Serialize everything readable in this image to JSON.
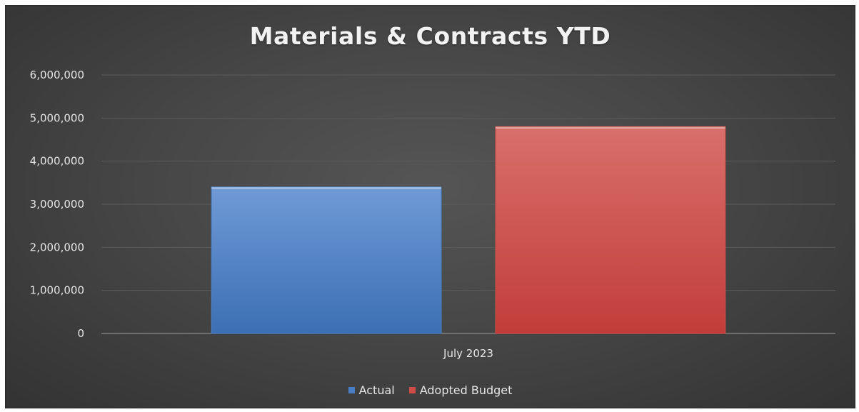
{
  "chart_data": {
    "type": "bar",
    "title": "Materials & Contracts YTD",
    "categories": [
      "July 2023"
    ],
    "series": [
      {
        "name": "Actual",
        "values": [
          3400000
        ],
        "color": "#4a7ec4"
      },
      {
        "name": "Adopted Budget",
        "values": [
          4800000
        ],
        "color": "#cf4b48"
      }
    ],
    "xlabel": "",
    "ylabel": "",
    "ylim": [
      0,
      6000000
    ],
    "yticks": [
      "0",
      "1,000,000",
      "2,000,000",
      "3,000,000",
      "4,000,000",
      "5,000,000",
      "6,000,000"
    ],
    "grid": true,
    "legend_position": "bottom"
  }
}
